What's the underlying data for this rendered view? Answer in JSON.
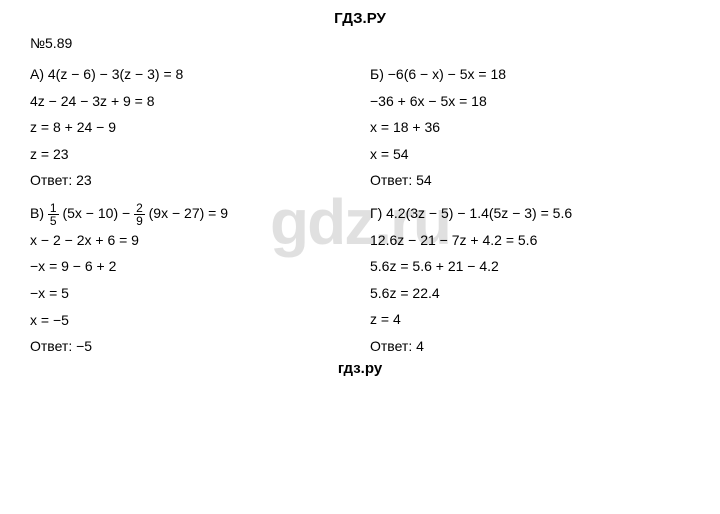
{
  "header": "ГДЗ.РУ",
  "footer": "гдз.ру",
  "watermark": "gdz.ru",
  "problem_number": "№5.89",
  "left": {
    "a_label": "А) 4(z − 6) − 3(z − 3) = 8",
    "a_l1": "4z − 24 − 3z + 9 = 8",
    "a_l2": "z = 8 + 24 − 9",
    "a_l3": "z = 23",
    "a_answer": "Ответ: 23",
    "v_label_prefix": "В) ",
    "v_frac1_num": "1",
    "v_frac1_den": "5",
    "v_mid1": " (5x − 10) − ",
    "v_frac2_num": "2",
    "v_frac2_den": "9",
    "v_mid2": " (9x − 27) = 9",
    "v_l1": "x − 2 − 2x + 6 = 9",
    "v_l2": "−x = 9 − 6 + 2",
    "v_l3": "−x = 5",
    "v_l4": "x = −5",
    "v_answer": "Ответ: −5"
  },
  "right": {
    "b_label": "Б) −6(6 − x) − 5x = 18",
    "b_l1": "−36 + 6x − 5x = 18",
    "b_l2": "x = 18 + 36",
    "b_l3": "x = 54",
    "b_answer": "Ответ: 54",
    "g_label": "Г) 4.2(3z − 5) − 1.4(5z − 3) = 5.6",
    "g_l1": "12.6z − 21 − 7z + 4.2 = 5.6",
    "g_l2": "5.6z = 5.6 + 21 − 4.2",
    "g_l3": "5.6z = 22.4",
    "g_l4": "z = 4",
    "g_answer": "Ответ: 4"
  },
  "text_color": "#000000",
  "bg_color": "#ffffff",
  "watermark_color": "rgba(0,0,0,0.12)",
  "font_size_body": 14,
  "font_size_header": 15,
  "font_size_watermark": 64
}
